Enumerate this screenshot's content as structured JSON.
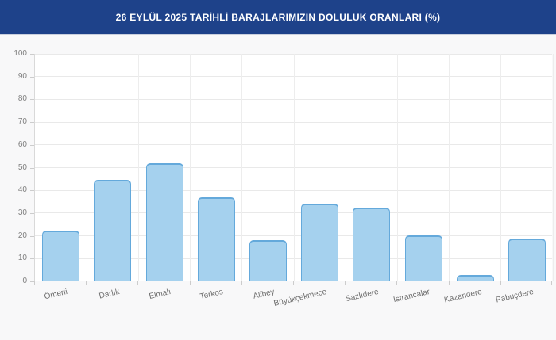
{
  "header": {
    "title": "26 EYLÜL 2025 TARİHLİ BARAJLARIMIZIN DOLULUK ORANLARI (%)",
    "background": "#1e428a",
    "text_color": "#ffffff"
  },
  "chart_data": {
    "type": "bar",
    "title": "26 EYLÜL 2025 TARİHLİ BARAJLARIMIZIN DOLULUK ORANLARI (%)",
    "categories": [
      "Ömerli",
      "Darlık",
      "Elmalı",
      "Terkos",
      "Alibey",
      "Büyükçekmece",
      "Sazlıdere",
      "Istrancalar",
      "Kazandere",
      "Pabuçdere"
    ],
    "values": [
      22.1,
      44.4,
      51.5,
      36.7,
      17.8,
      33.9,
      31.9,
      20.0,
      2.3,
      18.3
    ],
    "xlabel": "",
    "ylabel": "",
    "ylim": [
      0,
      100
    ],
    "y_ticks": [
      0,
      10,
      20,
      30,
      40,
      50,
      60,
      70,
      80,
      90,
      100
    ],
    "grid": true,
    "legend": false,
    "bar_fill": "#a5d1ee",
    "bar_border": "#64a9db",
    "grid_color": "#e9e9e9",
    "axis_label_color": "#7f7f7f"
  }
}
